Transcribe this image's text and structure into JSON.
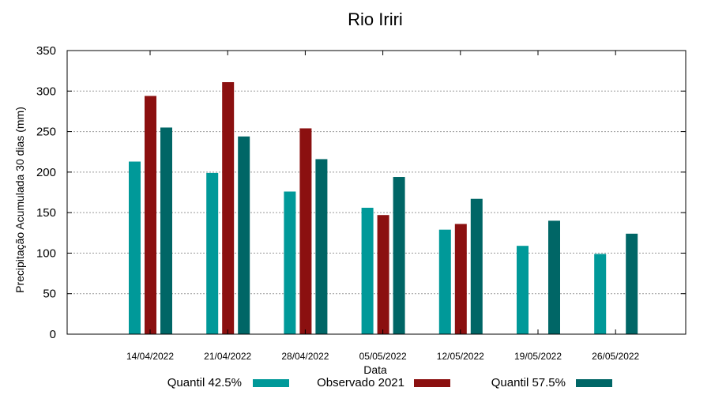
{
  "chart_data": {
    "type": "bar",
    "title": "Rio Iriri",
    "xlabel": "Data",
    "ylabel": "Precipitação Acumulada 30 dias (mm)",
    "ylim": [
      0,
      350
    ],
    "yticks": [
      0,
      50,
      100,
      150,
      200,
      250,
      300,
      350
    ],
    "grid": true,
    "legend_position": "bottom",
    "categories": [
      "14/04/2022",
      "21/04/2022",
      "28/04/2022",
      "05/05/2022",
      "12/05/2022",
      "19/05/2022",
      "26/05/2022"
    ],
    "series": [
      {
        "name": "Quantil 42.5%",
        "color": "#009999",
        "values": [
          213,
          199,
          176,
          156,
          129,
          109,
          99
        ]
      },
      {
        "name": "Observado 2021",
        "color": "#8B1010",
        "values": [
          294,
          311,
          254,
          147,
          136,
          null,
          null
        ]
      },
      {
        "name": "Quantil 57.5%",
        "color": "#006666",
        "values": [
          255,
          244,
          216,
          194,
          167,
          140,
          124
        ]
      }
    ]
  }
}
